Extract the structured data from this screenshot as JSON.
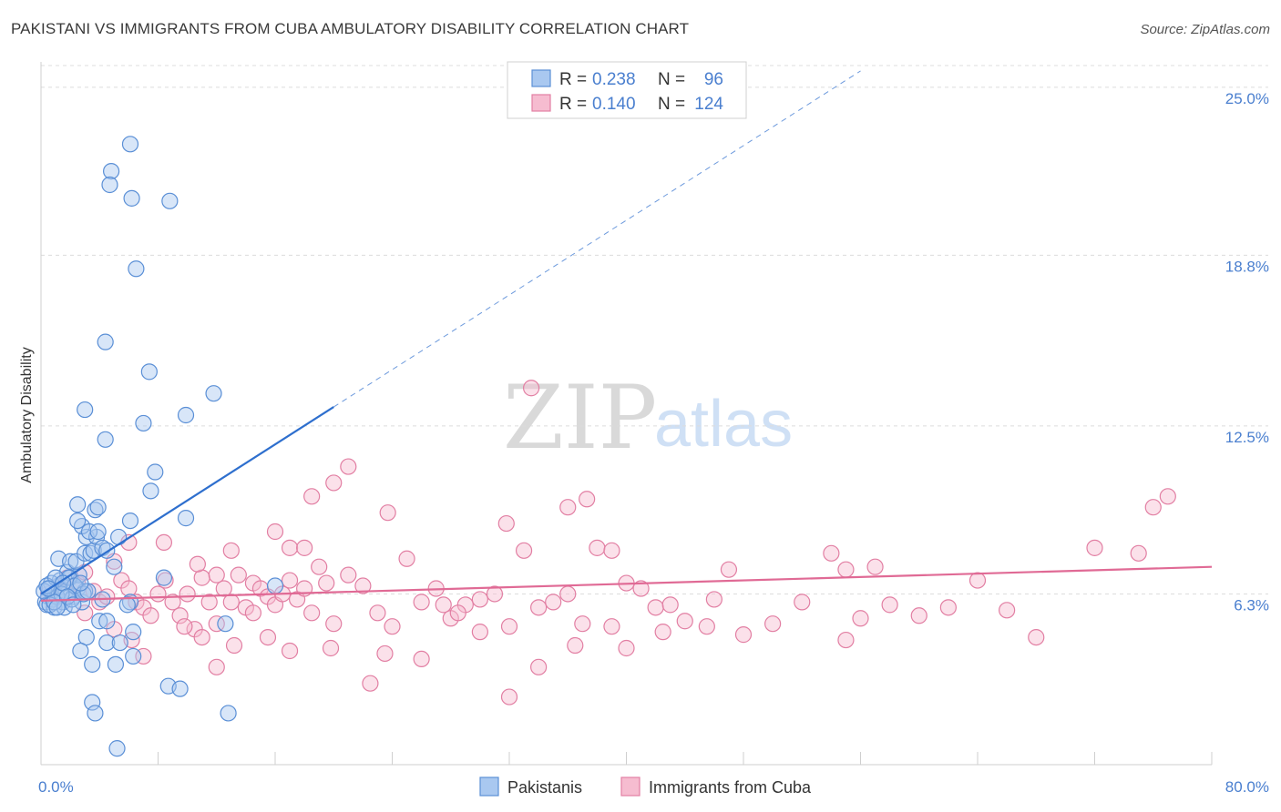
{
  "header": {
    "title": "PAKISTANI VS IMMIGRANTS FROM CUBA AMBULATORY DISABILITY CORRELATION CHART",
    "source": "Source: ZipAtlas.com"
  },
  "watermark": {
    "zip": "ZIP",
    "atlas": "atlas"
  },
  "legend": {
    "rows": [
      {
        "r_label": "R =",
        "r_value": "0.238",
        "n_label": "N =",
        "n_value": "96"
      },
      {
        "r_label": "R =",
        "r_value": "0.140",
        "n_label": "N =",
        "n_value": "124"
      }
    ]
  },
  "bottom_legend": [
    "Pakistanis",
    "Immigrants from Cuba"
  ],
  "colors": {
    "blue_fill": "#a9c8f0",
    "blue_stroke": "#5a8fd6",
    "blue_line": "#2e6fce",
    "pink_fill": "#f6bcd0",
    "pink_stroke": "#e27fa3",
    "pink_line": "#e06a95",
    "grid": "#dcdcdc",
    "tick_text": "#4a7fcf"
  },
  "chart_data": {
    "type": "scatter",
    "title": "PAKISTANI VS IMMIGRANTS FROM CUBA AMBULATORY DISABILITY CORRELATION CHART",
    "xlabel": "",
    "ylabel": "Ambulatory Disability",
    "xlim": [
      0,
      80
    ],
    "ylim": [
      0,
      25.8
    ],
    "x_tick_labels": [
      "0.0%",
      "80.0%"
    ],
    "y_ticks": [
      6.3,
      12.5,
      18.8,
      25.0
    ],
    "y_tick_labels": [
      "6.3%",
      "12.5%",
      "18.8%",
      "25.0%"
    ],
    "grid": true,
    "legend_position": "top-center",
    "series": [
      {
        "name": "Pakistanis",
        "R": 0.238,
        "N": 96,
        "trend": {
          "x0": 0.0,
          "y0": 6.3,
          "x1": 20.0,
          "y1": 13.2,
          "dashed_to_x": 56.0,
          "dashed_to_y": 25.6
        },
        "points": [
          [
            0.3,
            6.0
          ],
          [
            0.5,
            6.2
          ],
          [
            0.6,
            6.5
          ],
          [
            0.4,
            5.9
          ],
          [
            0.8,
            6.1
          ],
          [
            1.0,
            6.3
          ],
          [
            1.2,
            6.6
          ],
          [
            0.9,
            5.8
          ],
          [
            1.5,
            6.0
          ],
          [
            1.3,
            6.8
          ],
          [
            1.7,
            6.4
          ],
          [
            2.0,
            6.9
          ],
          [
            2.2,
            6.2
          ],
          [
            1.8,
            7.1
          ],
          [
            2.5,
            6.5
          ],
          [
            2.8,
            6.0
          ],
          [
            1.1,
            6.2
          ],
          [
            0.7,
            6.7
          ],
          [
            1.6,
            5.8
          ],
          [
            2.1,
            6.1
          ],
          [
            0.2,
            6.4
          ],
          [
            0.4,
            6.6
          ],
          [
            1.4,
            6.3
          ],
          [
            3.0,
            6.4
          ],
          [
            2.6,
            7.0
          ],
          [
            1.9,
            6.9
          ],
          [
            2.3,
            6.6
          ],
          [
            0.6,
            5.9
          ],
          [
            1.0,
            6.9
          ],
          [
            1.2,
            7.6
          ],
          [
            2.0,
            7.5
          ],
          [
            2.4,
            7.5
          ],
          [
            3.0,
            7.8
          ],
          [
            3.4,
            7.8
          ],
          [
            3.6,
            7.9
          ],
          [
            3.1,
            8.4
          ],
          [
            3.8,
            8.4
          ],
          [
            2.8,
            8.8
          ],
          [
            4.2,
            8.0
          ],
          [
            3.3,
            8.6
          ],
          [
            3.9,
            8.6
          ],
          [
            4.5,
            7.9
          ],
          [
            2.5,
            9.0
          ],
          [
            2.5,
            9.6
          ],
          [
            3.7,
            9.4
          ],
          [
            3.9,
            9.5
          ],
          [
            5.3,
            8.4
          ],
          [
            6.1,
            9.0
          ],
          [
            7.5,
            10.1
          ],
          [
            7.8,
            10.8
          ],
          [
            9.9,
            9.1
          ],
          [
            8.4,
            6.9
          ],
          [
            5.0,
            7.3
          ],
          [
            4.0,
            5.3
          ],
          [
            4.5,
            5.3
          ],
          [
            6.3,
            4.9
          ],
          [
            4.5,
            4.5
          ],
          [
            5.4,
            4.5
          ],
          [
            6.3,
            4.0
          ],
          [
            3.1,
            4.7
          ],
          [
            2.7,
            4.2
          ],
          [
            3.5,
            3.7
          ],
          [
            5.1,
            3.7
          ],
          [
            8.7,
            2.9
          ],
          [
            9.5,
            2.8
          ],
          [
            3.5,
            2.3
          ],
          [
            3.7,
            1.9
          ],
          [
            12.8,
            1.9
          ],
          [
            5.2,
            0.6
          ],
          [
            12.6,
            5.2
          ],
          [
            6.1,
            6.0
          ],
          [
            5.9,
            5.9
          ],
          [
            16.0,
            6.6
          ],
          [
            3.0,
            13.1
          ],
          [
            4.4,
            15.6
          ],
          [
            6.1,
            22.9
          ],
          [
            4.8,
            21.9
          ],
          [
            4.7,
            21.4
          ],
          [
            6.2,
            20.9
          ],
          [
            8.8,
            20.8
          ],
          [
            6.5,
            18.3
          ],
          [
            7.4,
            14.5
          ],
          [
            7.0,
            12.6
          ],
          [
            9.9,
            12.9
          ],
          [
            11.8,
            13.7
          ],
          [
            4.4,
            12.0
          ],
          [
            4.2,
            6.1
          ],
          [
            2.9,
            6.3
          ],
          [
            3.2,
            6.4
          ],
          [
            1.5,
            6.7
          ],
          [
            0.9,
            6.0
          ],
          [
            1.8,
            6.2
          ],
          [
            2.2,
            5.9
          ],
          [
            0.5,
            6.5
          ],
          [
            1.1,
            5.8
          ],
          [
            2.7,
            6.7
          ]
        ]
      },
      {
        "name": "Immigrants from Cuba",
        "R": 0.14,
        "N": 124,
        "trend": {
          "x0": 0.0,
          "y0": 6.05,
          "x1": 80.0,
          "y1": 7.3
        },
        "points": [
          [
            0.5,
            6.3
          ],
          [
            1.2,
            6.6
          ],
          [
            1.8,
            6.9
          ],
          [
            2.5,
            6.7
          ],
          [
            3.0,
            7.1
          ],
          [
            3.6,
            6.4
          ],
          [
            4.0,
            6.0
          ],
          [
            4.5,
            6.2
          ],
          [
            5.0,
            7.5
          ],
          [
            5.5,
            6.8
          ],
          [
            6.0,
            6.5
          ],
          [
            6.5,
            6.0
          ],
          [
            7.0,
            5.8
          ],
          [
            7.5,
            5.5
          ],
          [
            8.0,
            6.3
          ],
          [
            8.5,
            6.8
          ],
          [
            9.0,
            6.0
          ],
          [
            9.5,
            5.5
          ],
          [
            10.0,
            6.3
          ],
          [
            10.5,
            5.0
          ],
          [
            11.0,
            6.9
          ],
          [
            11.5,
            6.0
          ],
          [
            12.0,
            5.2
          ],
          [
            12.5,
            6.5
          ],
          [
            13.0,
            6.0
          ],
          [
            13.5,
            7.0
          ],
          [
            14.0,
            5.8
          ],
          [
            14.5,
            6.7
          ],
          [
            15.0,
            6.5
          ],
          [
            15.5,
            6.2
          ],
          [
            16.0,
            5.9
          ],
          [
            16.5,
            6.3
          ],
          [
            17.0,
            6.8
          ],
          [
            17.5,
            6.1
          ],
          [
            18.0,
            6.5
          ],
          [
            18.5,
            5.6
          ],
          [
            19.0,
            7.3
          ],
          [
            19.5,
            6.7
          ],
          [
            20.0,
            5.2
          ],
          [
            21.0,
            7.0
          ],
          [
            22.0,
            6.6
          ],
          [
            23.0,
            5.6
          ],
          [
            24.0,
            5.1
          ],
          [
            25.0,
            7.6
          ],
          [
            26.0,
            6.0
          ],
          [
            27.0,
            6.5
          ],
          [
            28.0,
            5.4
          ],
          [
            29.0,
            5.9
          ],
          [
            30.0,
            6.1
          ],
          [
            31.0,
            6.3
          ],
          [
            32.0,
            5.1
          ],
          [
            33.0,
            7.9
          ],
          [
            34.0,
            5.8
          ],
          [
            35.0,
            6.0
          ],
          [
            36.0,
            6.3
          ],
          [
            37.0,
            5.2
          ],
          [
            38.0,
            8.0
          ],
          [
            39.0,
            7.9
          ],
          [
            40.0,
            6.7
          ],
          [
            41.0,
            6.5
          ],
          [
            42.0,
            5.8
          ],
          [
            43.0,
            5.9
          ],
          [
            44.0,
            5.3
          ],
          [
            46.0,
            6.1
          ],
          [
            47.0,
            7.2
          ],
          [
            48.0,
            4.8
          ],
          [
            50.0,
            5.2
          ],
          [
            52.0,
            6.0
          ],
          [
            54.0,
            7.8
          ],
          [
            55.0,
            7.2
          ],
          [
            56.0,
            5.4
          ],
          [
            57.0,
            7.3
          ],
          [
            58.0,
            5.9
          ],
          [
            60.0,
            5.5
          ],
          [
            62.0,
            5.8
          ],
          [
            64.0,
            6.8
          ],
          [
            66.0,
            5.7
          ],
          [
            68.0,
            4.7
          ],
          [
            72.0,
            8.0
          ],
          [
            75.0,
            7.8
          ],
          [
            76.0,
            9.5
          ],
          [
            77.0,
            9.9
          ],
          [
            6.0,
            8.2
          ],
          [
            8.4,
            8.2
          ],
          [
            10.7,
            7.4
          ],
          [
            12.0,
            7.0
          ],
          [
            13.0,
            7.9
          ],
          [
            16.0,
            8.6
          ],
          [
            17.0,
            8.0
          ],
          [
            18.0,
            8.0
          ],
          [
            20.0,
            10.4
          ],
          [
            21.0,
            11.0
          ],
          [
            18.5,
            9.9
          ],
          [
            23.7,
            9.3
          ],
          [
            31.8,
            8.9
          ],
          [
            33.5,
            13.9
          ],
          [
            36.0,
            9.5
          ],
          [
            37.3,
            9.8
          ],
          [
            39.0,
            5.1
          ],
          [
            42.5,
            4.9
          ],
          [
            3.0,
            5.6
          ],
          [
            5.0,
            5.0
          ],
          [
            6.2,
            4.6
          ],
          [
            7.0,
            4.0
          ],
          [
            9.8,
            5.1
          ],
          [
            11.0,
            4.7
          ],
          [
            12.0,
            3.6
          ],
          [
            13.2,
            4.4
          ],
          [
            15.5,
            4.7
          ],
          [
            17.0,
            4.2
          ],
          [
            19.8,
            4.3
          ],
          [
            22.5,
            3.0
          ],
          [
            23.5,
            4.1
          ],
          [
            26.0,
            3.9
          ],
          [
            27.5,
            5.9
          ],
          [
            30.0,
            4.9
          ],
          [
            32.0,
            2.5
          ],
          [
            34.0,
            3.6
          ],
          [
            36.5,
            4.4
          ],
          [
            40.0,
            4.3
          ],
          [
            45.5,
            5.1
          ],
          [
            55.0,
            4.6
          ],
          [
            14.5,
            5.6
          ],
          [
            28.5,
            5.6
          ]
        ]
      }
    ]
  }
}
